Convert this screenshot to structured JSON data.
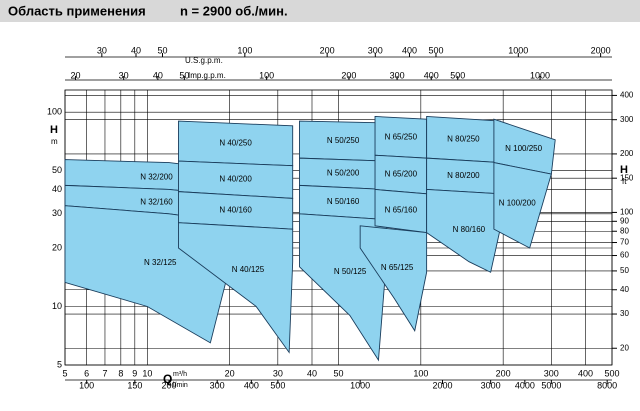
{
  "chart_data": {
    "type": "coverage",
    "title": "Область применения",
    "subtitle": "n = 2900 об./мин.",
    "x_label": "Q",
    "x_unit": "m³/h",
    "x3_unit": "l/min",
    "y_label": "H",
    "y_unit": "m",
    "y2_label": "H",
    "y2_unit": "ft",
    "x2_label": "U.S.g.p.m.",
    "x4_label": "Imp.g.p.m.",
    "log_scale": true,
    "grid": true,
    "color": "#8fd3ef",
    "xlim": [
      5,
      500
    ],
    "xticks": [
      5,
      6,
      7,
      8,
      9,
      10,
      20,
      30,
      40,
      50,
      100,
      200,
      300,
      400,
      500
    ],
    "ylim": [
      5,
      130
    ],
    "yticks": [
      5,
      10,
      20,
      30,
      40,
      50,
      100
    ],
    "y2lim": [
      16.4,
      426.5
    ],
    "y2ticks": [
      20,
      30,
      40,
      50,
      60,
      70,
      80,
      90,
      100,
      150,
      200,
      300,
      400
    ],
    "x2lim": [
      22.0,
      2201
    ],
    "x2ticks": [
      30,
      40,
      50,
      100,
      200,
      300,
      400,
      500,
      1000,
      2000
    ],
    "x3lim": [
      83.3,
      8333
    ],
    "x3ticks": [
      100,
      150,
      200,
      300,
      400,
      500,
      1000,
      2000,
      3000,
      4000,
      5000,
      8000
    ],
    "x4lim": [
      18.3,
      1833
    ],
    "x4ticks": [
      20,
      30,
      40,
      50,
      100,
      200,
      300,
      400,
      500,
      1000
    ],
    "regions": [
      {
        "name": "N 32/200",
        "q": [
          5,
          12,
          21,
          21,
          12,
          5
        ],
        "h": [
          57,
          55,
          50,
          37,
          40,
          42
        ]
      },
      {
        "name": "N 32/160",
        "q": [
          5,
          12,
          21,
          21,
          12,
          5
        ],
        "h": [
          42,
          40,
          37,
          27,
          30,
          33
        ]
      },
      {
        "name": "N 32/125",
        "q": [
          5,
          12,
          21,
          20,
          17,
          10,
          5
        ],
        "h": [
          33,
          30,
          27,
          16,
          6.5,
          10,
          13.3
        ]
      },
      {
        "name": "N 40/250",
        "q": [
          13,
          34,
          34,
          13
        ],
        "h": [
          90,
          85,
          53,
          56
        ]
      },
      {
        "name": "N 40/200",
        "q": [
          13,
          34,
          34,
          13
        ],
        "h": [
          56,
          53,
          36,
          39
        ]
      },
      {
        "name": "N 40/160",
        "q": [
          13,
          34,
          34,
          13
        ],
        "h": [
          39,
          36,
          25,
          27
        ]
      },
      {
        "name": "N 40/125",
        "q": [
          13,
          34,
          34,
          33,
          25,
          13
        ],
        "h": [
          27,
          25,
          17,
          5.8,
          10,
          20
        ]
      },
      {
        "name": "N 50/250",
        "q": [
          36,
          75,
          75,
          36
        ],
        "h": [
          90,
          88,
          56,
          58
        ]
      },
      {
        "name": "N 50/200",
        "q": [
          36,
          75,
          75,
          36
        ],
        "h": [
          58,
          56,
          40,
          42
        ]
      },
      {
        "name": "N 50/160",
        "q": [
          36,
          75,
          75,
          36
        ],
        "h": [
          42,
          40,
          28,
          30
        ]
      },
      {
        "name": "N 50/125",
        "q": [
          36,
          75,
          75,
          70,
          55,
          36
        ],
        "h": [
          30,
          28,
          18,
          5.3,
          9,
          16
        ]
      },
      {
        "name": "N 65/250",
        "q": [
          68,
          105,
          105,
          68
        ],
        "h": [
          95,
          92,
          58,
          60
        ]
      },
      {
        "name": "N 65/200",
        "q": [
          68,
          105,
          105,
          68
        ],
        "h": [
          60,
          58,
          38,
          40
        ]
      },
      {
        "name": "N 65/160",
        "q": [
          68,
          105,
          105,
          68
        ],
        "h": [
          40,
          38,
          24,
          26
        ]
      },
      {
        "name": "N 65/125",
        "q": [
          60,
          105,
          105,
          95,
          80,
          60
        ],
        "h": [
          26,
          24,
          15,
          7.5,
          11,
          20
        ]
      },
      {
        "name": "N 80/250",
        "q": [
          105,
          195,
          195,
          105
        ],
        "h": [
          95,
          90,
          55,
          58
        ]
      },
      {
        "name": "N 80/200",
        "q": [
          105,
          195,
          195,
          105
        ],
        "h": [
          58,
          55,
          38,
          40
        ]
      },
      {
        "name": "N 80/160",
        "q": [
          105,
          195,
          195,
          180,
          150,
          105
        ],
        "h": [
          40,
          38,
          25,
          15,
          17,
          24
        ]
      },
      {
        "name": "N 100/250",
        "q": [
          185,
          310,
          300,
          185
        ],
        "h": [
          92,
          72,
          48,
          55
        ]
      },
      {
        "name": "N 100/200",
        "q": [
          185,
          300,
          250,
          185
        ],
        "h": [
          55,
          48,
          20,
          25
        ]
      }
    ]
  }
}
